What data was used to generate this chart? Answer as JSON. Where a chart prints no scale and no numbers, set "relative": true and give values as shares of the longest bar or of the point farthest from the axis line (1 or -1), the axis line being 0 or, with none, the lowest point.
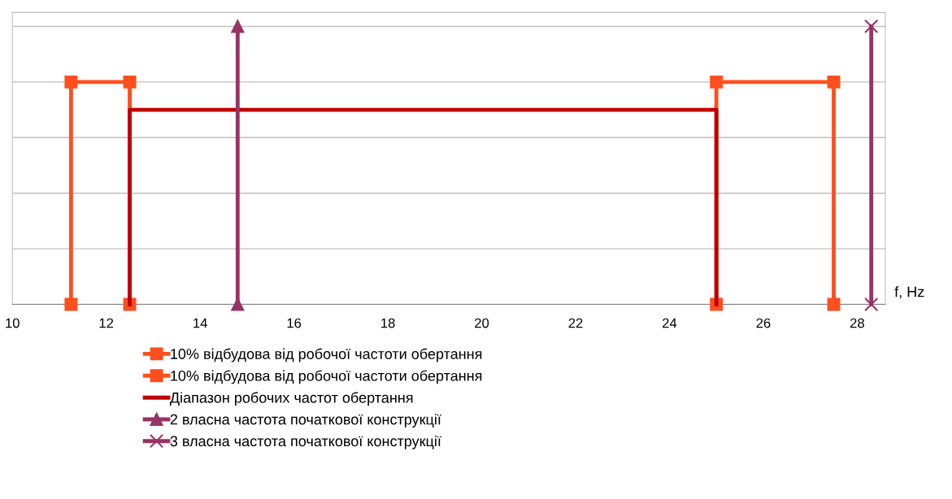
{
  "chart_data": {
    "type": "line",
    "relative": true,
    "xlabel": "f, Hz",
    "xlim": [
      10,
      28.6
    ],
    "xticks": [
      10,
      12,
      14,
      16,
      18,
      20,
      22,
      24,
      26,
      28
    ],
    "grid": "y",
    "legend": "bottom",
    "tick_labels": "x",
    "series": [
      {
        "name": "10% відбудова від робочої частоти обертання",
        "color": "#ff4f1f",
        "marker": "square",
        "x": [
          11.25,
          11.25,
          12.5,
          12.5
        ],
        "values": [
          0,
          0.8,
          0.8,
          0
        ]
      },
      {
        "name": "10% відбудова від робочої частоти обертання",
        "color": "#ff4f1f",
        "marker": "square",
        "x": [
          25,
          25,
          27.5,
          27.5
        ],
        "values": [
          0,
          0.8,
          0.8,
          0
        ]
      },
      {
        "name": "Діапазон робочих частот обертання",
        "color": "#c00000",
        "marker": "none",
        "x": [
          12.5,
          12.5,
          25,
          25
        ],
        "values": [
          0,
          0.7,
          0.7,
          0
        ]
      },
      {
        "name": "2 власна частота початкової конструкції",
        "color": "#993366",
        "marker": "triangle",
        "x": [
          14.8,
          14.8
        ],
        "values": [
          0,
          1
        ]
      },
      {
        "name": "3 власна частота початкової конструкції",
        "color": "#993366",
        "marker": "cross",
        "x": [
          28.3,
          28.3
        ],
        "values": [
          0,
          1
        ]
      }
    ]
  }
}
